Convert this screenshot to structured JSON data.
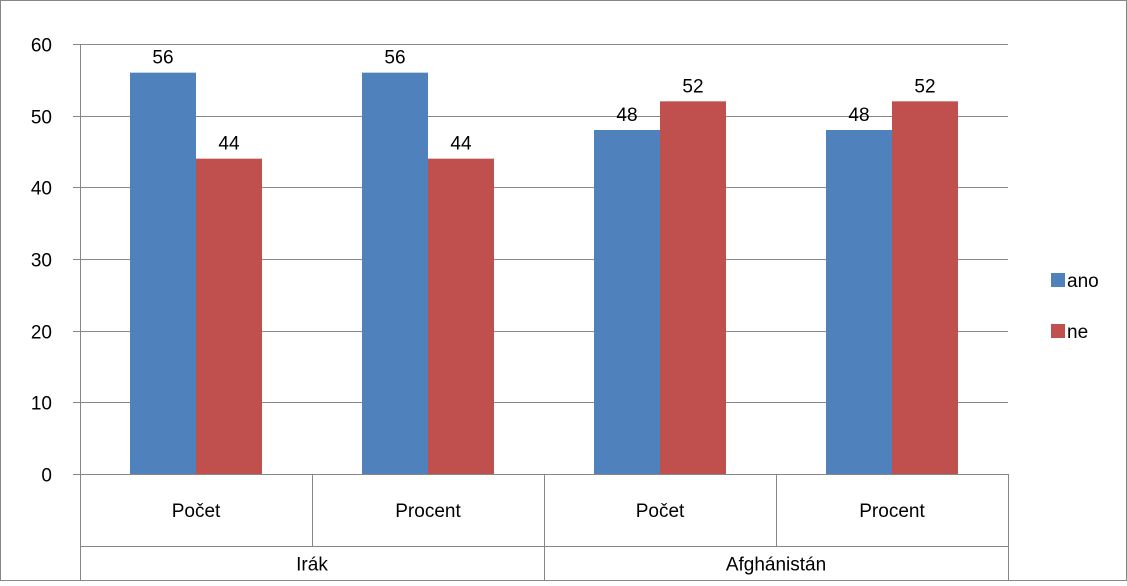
{
  "chart_data": {
    "type": "bar",
    "title": "",
    "xlabel": "",
    "ylabel": "",
    "ylim": [
      0,
      60
    ],
    "yticks": [
      0,
      10,
      20,
      30,
      40,
      50,
      60
    ],
    "grid": true,
    "legend_position": "right",
    "groups": [
      {
        "label": "Irák",
        "categories": [
          "Počet",
          "Procent"
        ]
      },
      {
        "label": "Afghánistán",
        "categories": [
          "Počet",
          "Procent"
        ]
      }
    ],
    "categories": [
      "Počet",
      "Procent",
      "Počet",
      "Procent"
    ],
    "series": [
      {
        "name": "ano",
        "color": "#4F81BD",
        "values": [
          56,
          56,
          48,
          48
        ]
      },
      {
        "name": "ne",
        "color": "#C0504D",
        "values": [
          44,
          44,
          52,
          52
        ]
      }
    ]
  }
}
